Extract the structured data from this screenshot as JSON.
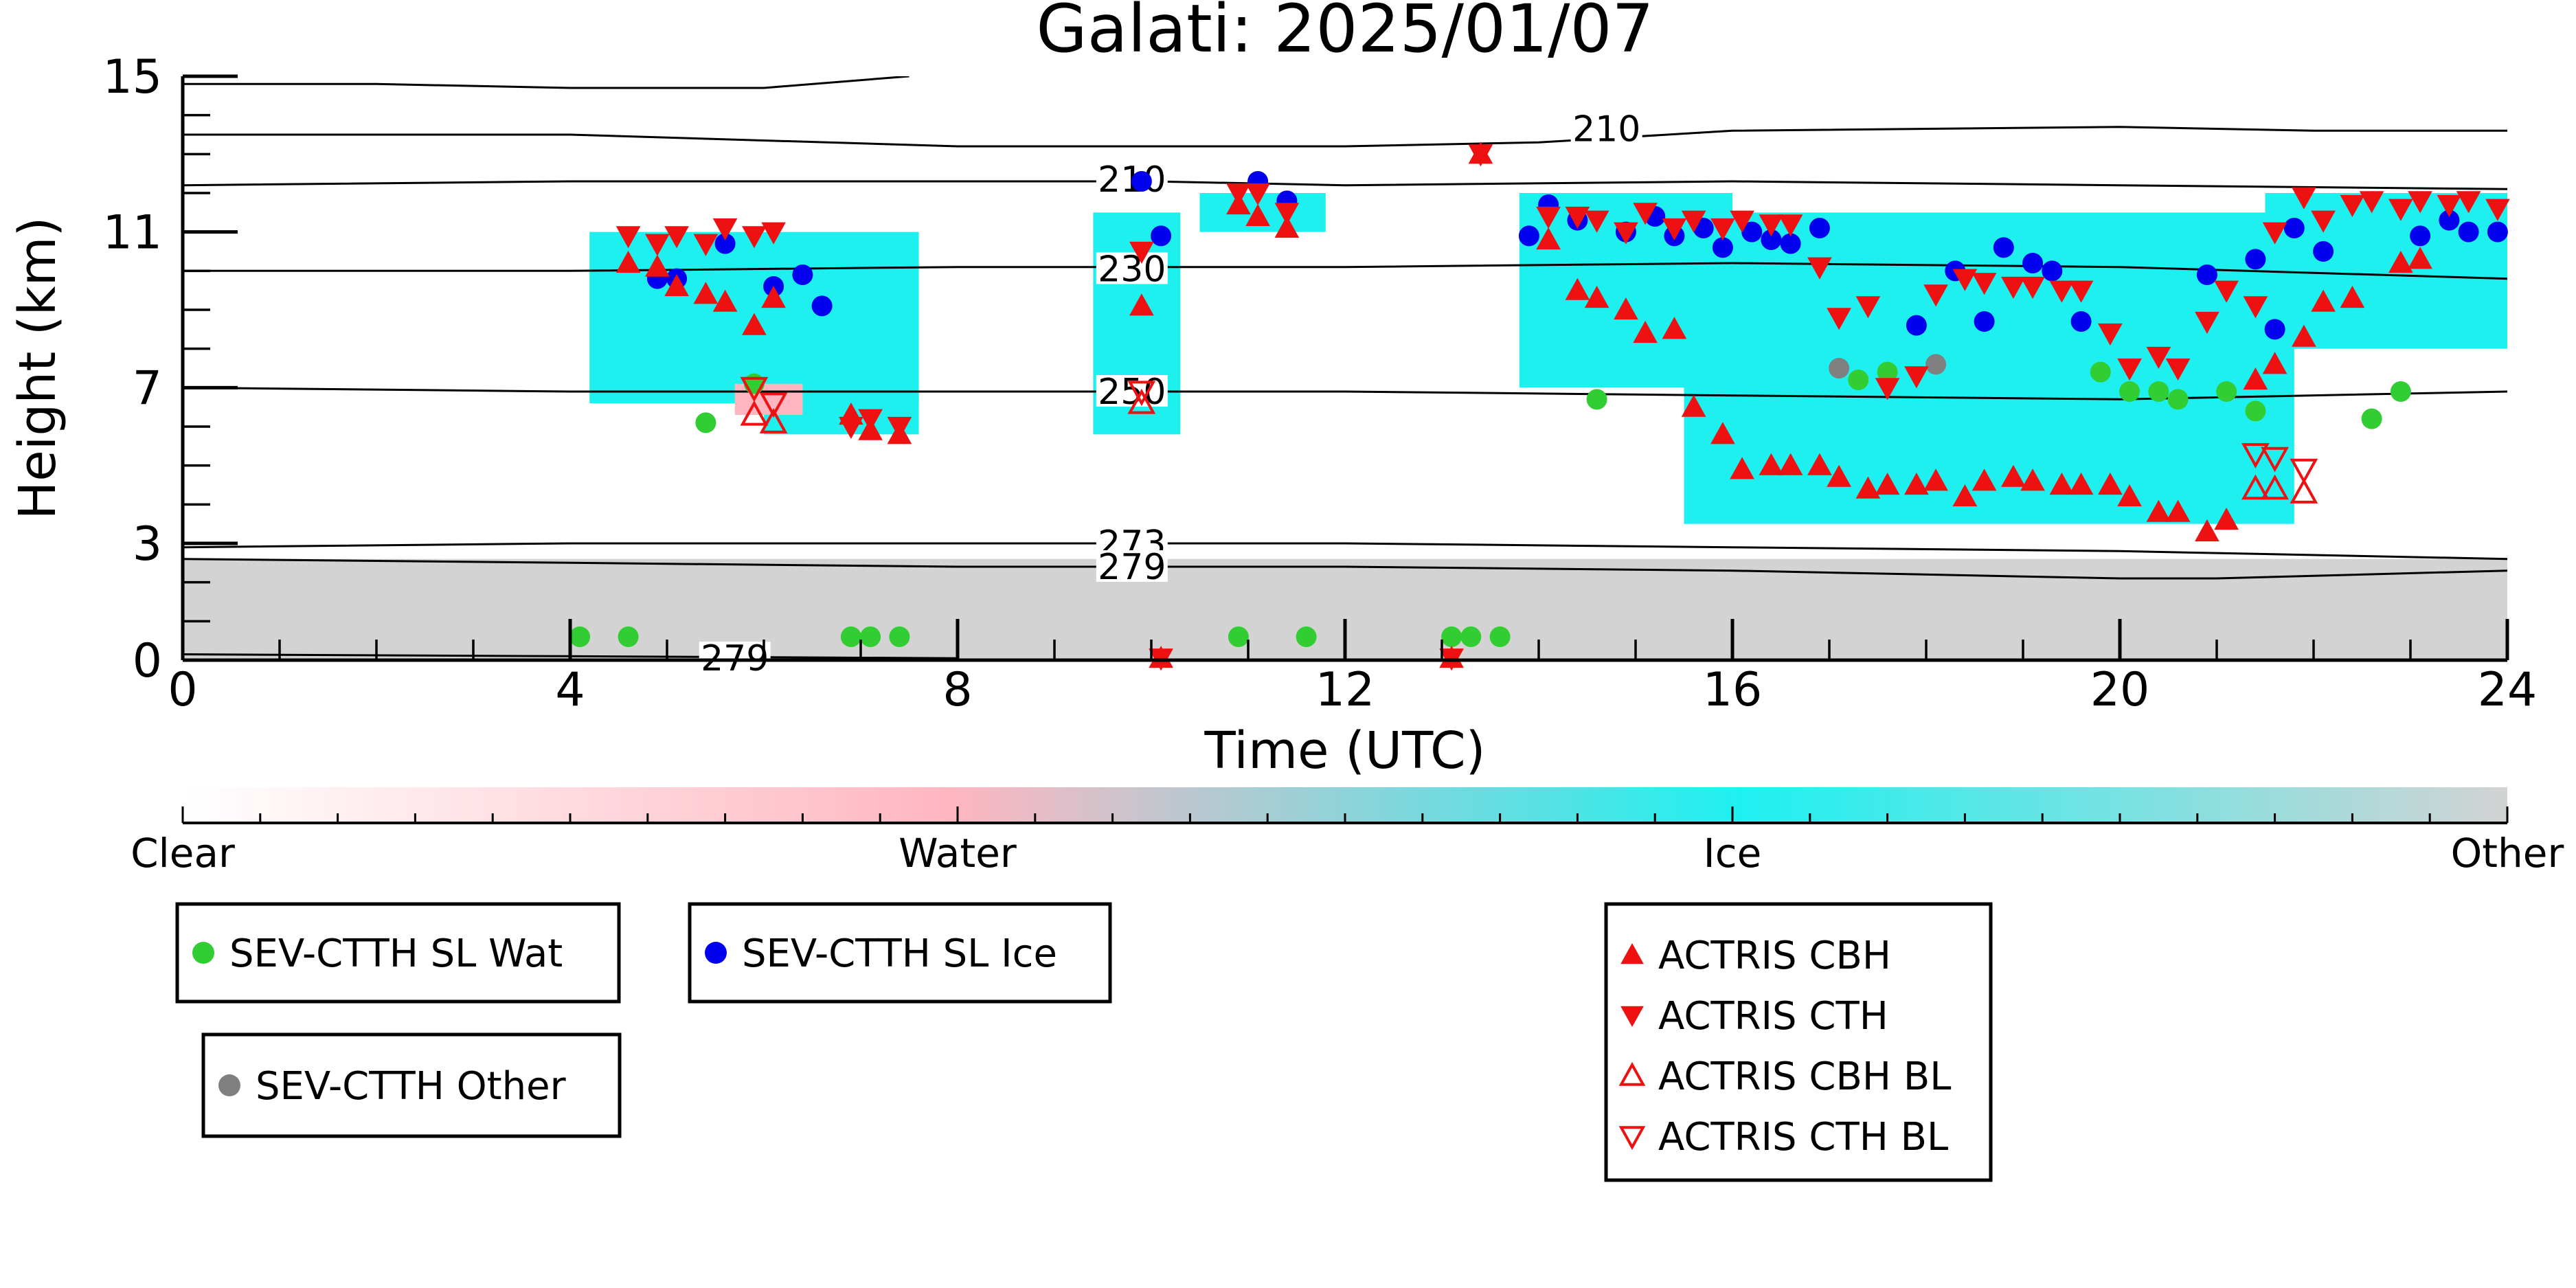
{
  "chart_data": {
    "type": "scatter",
    "title": "Galati: 2025/01/07",
    "xlabel": "Time (UTC)",
    "ylabel": "Height (km)",
    "xlim": [
      0,
      24
    ],
    "ylim": [
      0,
      15
    ],
    "x_ticks": [
      0,
      4,
      8,
      12,
      16,
      20,
      24
    ],
    "x_tick_labels": [
      "0",
      "4",
      "8",
      "12",
      "16",
      "20",
      "24"
    ],
    "y_ticks": [
      0,
      3,
      7,
      11,
      15
    ],
    "y_tick_labels": [
      "0",
      "3",
      "7",
      "11",
      "15"
    ],
    "grid": false,
    "background_classes": [
      {
        "name": "Other (boundary layer)",
        "color": "#d3d3d3",
        "regions": [
          {
            "x0": 0,
            "x1": 24,
            "y0": 0,
            "y1": 2.6
          }
        ]
      },
      {
        "name": "Ice",
        "color": "#1ef0f0",
        "regions": [
          {
            "x0": 4.2,
            "x1": 7.6,
            "y0": 6.6,
            "y1": 11.0
          },
          {
            "x0": 6.0,
            "x1": 7.6,
            "y0": 5.8,
            "y1": 6.8
          },
          {
            "x0": 9.4,
            "x1": 10.3,
            "y0": 5.8,
            "y1": 11.5
          },
          {
            "x0": 10.5,
            "x1": 11.8,
            "y0": 11.0,
            "y1": 12.0
          },
          {
            "x0": 13.8,
            "x1": 16.0,
            "y0": 7.0,
            "y1": 12.0
          },
          {
            "x0": 15.5,
            "x1": 21.8,
            "y0": 3.5,
            "y1": 11.5
          },
          {
            "x0": 21.5,
            "x1": 24.0,
            "y0": 8.0,
            "y1": 12.0
          }
        ]
      },
      {
        "name": "Water",
        "color": "#ffb6c1",
        "regions": [
          {
            "x0": 5.7,
            "x1": 6.4,
            "y0": 6.3,
            "y1": 7.1
          }
        ]
      }
    ],
    "contours": [
      {
        "label": "210",
        "points": [
          [
            0,
            13.5
          ],
          [
            4,
            13.5
          ],
          [
            8,
            13.2
          ],
          [
            12,
            13.2
          ],
          [
            14,
            13.3
          ],
          [
            16,
            13.6
          ],
          [
            20,
            13.7
          ],
          [
            22,
            13.6
          ],
          [
            24,
            13.6
          ]
        ],
        "label_at": [
          14.7,
          13.65
        ]
      },
      {
        "label": "210",
        "points": [
          [
            0,
            12.2
          ],
          [
            4,
            12.3
          ],
          [
            8,
            12.3
          ],
          [
            10,
            12.3
          ],
          [
            12,
            12.2
          ],
          [
            16,
            12.3
          ],
          [
            20,
            12.2
          ],
          [
            24,
            12.1
          ]
        ],
        "label_at": [
          9.8,
          12.35
        ]
      },
      {
        "label": "230",
        "points": [
          [
            0,
            10.0
          ],
          [
            4,
            10.0
          ],
          [
            8,
            10.1
          ],
          [
            12,
            10.1
          ],
          [
            16,
            10.2
          ],
          [
            20,
            10.1
          ],
          [
            24,
            9.8
          ]
        ],
        "label_at": [
          9.8,
          10.05
        ]
      },
      {
        "label": "250",
        "points": [
          [
            0,
            7.0
          ],
          [
            4,
            6.9
          ],
          [
            8,
            6.9
          ],
          [
            12,
            6.9
          ],
          [
            16,
            6.8
          ],
          [
            20,
            6.7
          ],
          [
            24,
            6.9
          ]
        ],
        "label_at": [
          9.8,
          6.9
        ]
      },
      {
        "label": "273",
        "points": [
          [
            0,
            2.9
          ],
          [
            4,
            3.0
          ],
          [
            8,
            3.0
          ],
          [
            12,
            3.0
          ],
          [
            16,
            2.9
          ],
          [
            20,
            2.8
          ],
          [
            24,
            2.6
          ]
        ],
        "label_at": [
          9.8,
          3.0
        ]
      },
      {
        "label": "279",
        "points": [
          [
            0,
            2.6
          ],
          [
            4,
            2.5
          ],
          [
            8,
            2.4
          ],
          [
            12,
            2.4
          ],
          [
            16,
            2.3
          ],
          [
            20,
            2.1
          ],
          [
            21,
            2.1
          ],
          [
            24,
            2.3
          ]
        ],
        "label_at": [
          9.8,
          2.4
        ]
      },
      {
        "label": "279",
        "points": [
          [
            0,
            0.15
          ],
          [
            4,
            0.1
          ],
          [
            8,
            0.05
          ]
        ],
        "label_at": [
          5.7,
          0.05
        ]
      },
      {
        "label": "",
        "points": [
          [
            0,
            14.8
          ],
          [
            2,
            14.8
          ],
          [
            4,
            14.7
          ],
          [
            6,
            14.7
          ],
          [
            7.5,
            15.0
          ]
        ],
        "label_at": null
      }
    ],
    "series": [
      {
        "name": "SEV-CTTH SL Wat",
        "marker": "circle",
        "color": "#32cd32",
        "points": [
          [
            4.1,
            0.6
          ],
          [
            4.6,
            0.6
          ],
          [
            5.4,
            6.1
          ],
          [
            5.9,
            7.1
          ],
          [
            6.9,
            0.6
          ],
          [
            7.1,
            0.6
          ],
          [
            7.4,
            0.6
          ],
          [
            10.9,
            0.6
          ],
          [
            11.6,
            0.6
          ],
          [
            13.1,
            0.6
          ],
          [
            13.3,
            0.6
          ],
          [
            13.6,
            0.6
          ],
          [
            14.6,
            6.7
          ],
          [
            17.3,
            7.2
          ],
          [
            17.6,
            7.4
          ],
          [
            19.8,
            7.4
          ],
          [
            20.1,
            6.9
          ],
          [
            20.4,
            6.9
          ],
          [
            20.6,
            6.7
          ],
          [
            21.1,
            6.9
          ],
          [
            21.4,
            6.4
          ],
          [
            22.6,
            6.2
          ],
          [
            22.9,
            6.9
          ]
        ]
      },
      {
        "name": "SEV-CTTH SL Ice",
        "marker": "circle",
        "color": "#0000ee",
        "points": [
          [
            4.9,
            9.8
          ],
          [
            5.1,
            9.8
          ],
          [
            5.6,
            10.7
          ],
          [
            6.1,
            9.6
          ],
          [
            6.4,
            9.9
          ],
          [
            6.6,
            9.1
          ],
          [
            9.9,
            12.3
          ],
          [
            10.1,
            10.9
          ],
          [
            11.1,
            12.3
          ],
          [
            11.4,
            11.8
          ],
          [
            13.9,
            10.9
          ],
          [
            14.1,
            11.7
          ],
          [
            14.4,
            11.3
          ],
          [
            14.9,
            11.0
          ],
          [
            15.2,
            11.4
          ],
          [
            15.4,
            10.9
          ],
          [
            15.7,
            11.1
          ],
          [
            15.9,
            10.6
          ],
          [
            16.2,
            11.0
          ],
          [
            16.4,
            10.8
          ],
          [
            16.6,
            10.7
          ],
          [
            16.9,
            11.1
          ],
          [
            17.9,
            8.6
          ],
          [
            18.3,
            10.0
          ],
          [
            18.6,
            8.7
          ],
          [
            18.8,
            10.6
          ],
          [
            19.1,
            10.2
          ],
          [
            19.3,
            10.0
          ],
          [
            19.6,
            8.7
          ],
          [
            20.9,
            9.9
          ],
          [
            21.4,
            10.3
          ],
          [
            21.6,
            8.5
          ],
          [
            21.8,
            11.1
          ],
          [
            22.1,
            10.5
          ],
          [
            23.1,
            10.9
          ],
          [
            23.4,
            11.3
          ],
          [
            23.6,
            11.0
          ],
          [
            23.9,
            11.0
          ]
        ]
      },
      {
        "name": "SEV-CTTH Other",
        "marker": "circle",
        "color": "#808080",
        "points": [
          [
            17.1,
            7.5
          ],
          [
            18.1,
            7.6
          ]
        ]
      },
      {
        "name": "ACTRIS CBH",
        "marker": "triangle-up",
        "color": "#ee1111",
        "points": [
          [
            4.6,
            10.2
          ],
          [
            4.9,
            10.1
          ],
          [
            5.1,
            9.6
          ],
          [
            5.4,
            9.4
          ],
          [
            5.6,
            9.2
          ],
          [
            5.9,
            8.6
          ],
          [
            6.1,
            9.3
          ],
          [
            6.9,
            6.3
          ],
          [
            7.1,
            5.9
          ],
          [
            7.4,
            5.8
          ],
          [
            9.9,
            9.1
          ],
          [
            10.1,
            0.05
          ],
          [
            10.9,
            11.7
          ],
          [
            11.1,
            11.4
          ],
          [
            11.4,
            11.1
          ],
          [
            13.1,
            0.05
          ],
          [
            13.4,
            13.0
          ],
          [
            14.1,
            10.8
          ],
          [
            14.4,
            9.5
          ],
          [
            14.6,
            9.3
          ],
          [
            14.9,
            9.0
          ],
          [
            15.1,
            8.4
          ],
          [
            15.4,
            8.5
          ],
          [
            15.6,
            6.5
          ],
          [
            15.9,
            5.8
          ],
          [
            16.1,
            4.9
          ],
          [
            16.4,
            5.0
          ],
          [
            16.6,
            5.0
          ],
          [
            16.9,
            5.0
          ],
          [
            17.1,
            4.7
          ],
          [
            17.4,
            4.4
          ],
          [
            17.6,
            4.5
          ],
          [
            17.9,
            4.5
          ],
          [
            18.1,
            4.6
          ],
          [
            18.4,
            4.2
          ],
          [
            18.6,
            4.6
          ],
          [
            18.9,
            4.7
          ],
          [
            19.1,
            4.6
          ],
          [
            19.4,
            4.5
          ],
          [
            19.6,
            4.5
          ],
          [
            19.9,
            4.5
          ],
          [
            20.1,
            4.2
          ],
          [
            20.4,
            3.8
          ],
          [
            20.6,
            3.8
          ],
          [
            20.9,
            3.3
          ],
          [
            21.1,
            3.6
          ],
          [
            21.4,
            7.2
          ],
          [
            21.6,
            7.6
          ],
          [
            21.9,
            8.3
          ],
          [
            22.1,
            9.2
          ],
          [
            22.4,
            9.3
          ],
          [
            22.9,
            10.2
          ],
          [
            23.1,
            10.3
          ]
        ]
      },
      {
        "name": "ACTRIS CTH",
        "marker": "triangle-down",
        "color": "#ee1111",
        "points": [
          [
            4.6,
            10.9
          ],
          [
            4.9,
            10.7
          ],
          [
            5.1,
            10.9
          ],
          [
            5.4,
            10.7
          ],
          [
            5.6,
            11.1
          ],
          [
            5.9,
            10.9
          ],
          [
            6.1,
            11.0
          ],
          [
            6.9,
            6.0
          ],
          [
            7.1,
            6.2
          ],
          [
            7.4,
            6.0
          ],
          [
            9.9,
            10.5
          ],
          [
            10.1,
            0.05
          ],
          [
            10.9,
            12.0
          ],
          [
            11.1,
            12.0
          ],
          [
            11.4,
            11.5
          ],
          [
            13.1,
            0.05
          ],
          [
            13.4,
            13.0
          ],
          [
            14.1,
            11.4
          ],
          [
            14.4,
            11.4
          ],
          [
            14.6,
            11.3
          ],
          [
            14.9,
            11.0
          ],
          [
            15.1,
            11.5
          ],
          [
            15.4,
            11.1
          ],
          [
            15.6,
            11.3
          ],
          [
            15.9,
            11.1
          ],
          [
            16.1,
            11.3
          ],
          [
            16.4,
            11.2
          ],
          [
            16.6,
            11.2
          ],
          [
            16.9,
            10.1
          ],
          [
            17.1,
            8.8
          ],
          [
            17.4,
            9.1
          ],
          [
            17.6,
            7.0
          ],
          [
            17.9,
            7.3
          ],
          [
            18.1,
            9.4
          ],
          [
            18.4,
            9.8
          ],
          [
            18.6,
            9.7
          ],
          [
            18.9,
            9.6
          ],
          [
            19.1,
            9.6
          ],
          [
            19.4,
            9.5
          ],
          [
            19.6,
            9.5
          ],
          [
            19.9,
            8.4
          ],
          [
            20.1,
            7.5
          ],
          [
            20.4,
            7.8
          ],
          [
            20.6,
            7.5
          ],
          [
            20.9,
            8.7
          ],
          [
            21.1,
            9.5
          ],
          [
            21.4,
            9.1
          ],
          [
            21.6,
            11.0
          ],
          [
            21.9,
            11.9
          ],
          [
            22.1,
            11.3
          ],
          [
            22.4,
            11.7
          ],
          [
            22.6,
            11.8
          ],
          [
            22.9,
            11.6
          ],
          [
            23.1,
            11.8
          ],
          [
            23.4,
            11.7
          ],
          [
            23.6,
            11.8
          ],
          [
            23.9,
            11.6
          ]
        ]
      },
      {
        "name": "ACTRIS CBH BL",
        "marker": "triangle-up-open",
        "color": "#ee1111",
        "points": [
          [
            5.9,
            6.3
          ],
          [
            6.1,
            6.1
          ],
          [
            9.9,
            6.6
          ],
          [
            21.4,
            4.4
          ],
          [
            21.6,
            4.4
          ],
          [
            21.9,
            4.3
          ]
        ]
      },
      {
        "name": "ACTRIS CTH BL",
        "marker": "triangle-down-open",
        "color": "#ee1111",
        "points": [
          [
            5.9,
            7.0
          ],
          [
            6.1,
            6.6
          ],
          [
            9.9,
            6.9
          ],
          [
            21.4,
            5.3
          ],
          [
            21.6,
            5.2
          ],
          [
            21.9,
            4.9
          ]
        ]
      }
    ],
    "colorbar": {
      "labels": [
        "Clear",
        "Water",
        "Ice",
        "Other"
      ],
      "stops": [
        {
          "at": 0.0,
          "color": "#ffffff"
        },
        {
          "at": 0.33,
          "color": "#ffb6c1"
        },
        {
          "at": 0.67,
          "color": "#1ef0f0"
        },
        {
          "at": 1.0,
          "color": "#d3d3d3"
        }
      ]
    },
    "legends": [
      {
        "entries": [
          {
            "label": "SEV-CTTH SL Wat",
            "marker": "circle",
            "color": "#32cd32"
          }
        ]
      },
      {
        "entries": [
          {
            "label": "SEV-CTTH SL Ice",
            "marker": "circle",
            "color": "#0000ee"
          }
        ]
      },
      {
        "entries": [
          {
            "label": "SEV-CTTH Other",
            "marker": "circle",
            "color": "#808080"
          }
        ]
      },
      {
        "entries": [
          {
            "label": "ACTRIS CBH",
            "marker": "triangle-up",
            "color": "#ee1111"
          },
          {
            "label": "ACTRIS CTH",
            "marker": "triangle-down",
            "color": "#ee1111"
          },
          {
            "label": "ACTRIS CBH BL",
            "marker": "triangle-up-open",
            "color": "#ee1111"
          },
          {
            "label": "ACTRIS CTH BL",
            "marker": "triangle-down-open",
            "color": "#ee1111"
          }
        ]
      }
    ]
  }
}
